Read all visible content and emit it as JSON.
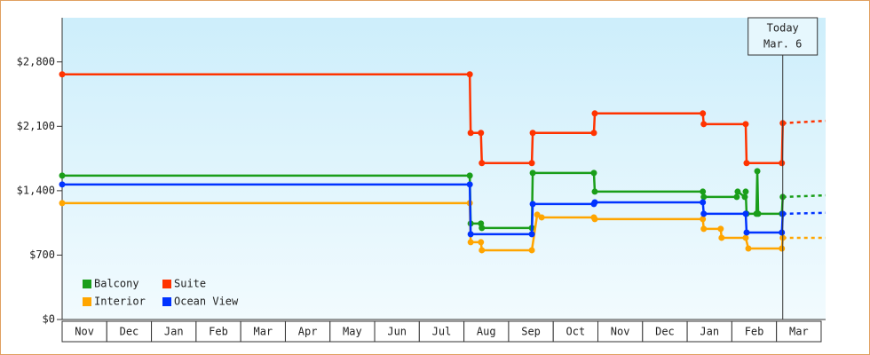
{
  "chart_data": {
    "type": "line",
    "categories": [
      "Nov",
      "Dec",
      "Jan",
      "Feb",
      "Mar",
      "Apr",
      "May",
      "Jun",
      "Jul",
      "Aug",
      "Sep",
      "Oct",
      "Nov",
      "Dec",
      "Jan",
      "Feb",
      "Mar"
    ],
    "xlim": [
      0,
      17.1
    ],
    "ylim": [
      0,
      3280
    ],
    "yticks": [
      {
        "value": 0,
        "label": "$0"
      },
      {
        "value": 700,
        "label": "$700"
      },
      {
        "value": 1400,
        "label": "$1,400"
      },
      {
        "value": 2100,
        "label": "$2,100"
      },
      {
        "value": 2800,
        "label": "$2,800"
      }
    ],
    "annotation": {
      "x": 16.14,
      "lines": [
        "Today",
        "Mar. 6"
      ]
    },
    "series": [
      {
        "name": "Balcony",
        "color": "#1a9e1a",
        "x": [
          0,
          9.13,
          9.15,
          9.38,
          9.4,
          10.52,
          10.54,
          11.91,
          11.93,
          14.35,
          14.37,
          15.11,
          15.13,
          15.29,
          15.31,
          15.33,
          15.55,
          15.57,
          15.59,
          16.12,
          16.14
        ],
        "values": [
          1564,
          1564,
          1043,
          1043,
          995,
          995,
          1593,
          1593,
          1390,
          1390,
          1332,
          1332,
          1390,
          1332,
          1390,
          1149,
          1149,
          1612,
          1149,
          1149,
          1332
        ],
        "projection": {
          "x": [
            16.14,
            17.1
          ],
          "values": [
            1332,
            1350
          ]
        }
      },
      {
        "name": "Suite",
        "color": "#ff3300",
        "x": [
          0,
          9.13,
          9.15,
          9.38,
          9.4,
          10.52,
          10.54,
          11.91,
          11.93,
          14.35,
          14.37,
          15.31,
          15.33,
          16.12,
          16.14
        ],
        "values": [
          2665,
          2665,
          2028,
          2028,
          1700,
          1700,
          2028,
          2028,
          2240,
          2240,
          2124,
          2124,
          1700,
          1700,
          2134
        ],
        "projection": {
          "x": [
            16.14,
            17.1
          ],
          "values": [
            2134,
            2160
          ]
        }
      },
      {
        "name": "Interior",
        "color": "#ffa500",
        "x": [
          0,
          9.13,
          9.15,
          9.38,
          9.4,
          10.52,
          10.64,
          10.74,
          11.91,
          11.93,
          14.35,
          14.37,
          14.75,
          14.77,
          15.31,
          15.37,
          16.12,
          16.14
        ],
        "values": [
          1265,
          1265,
          840,
          840,
          753,
          753,
          1139,
          1110,
          1110,
          1091,
          1091,
          985,
          985,
          888,
          888,
          772,
          772,
          888
        ],
        "projection": {
          "x": [
            16.14,
            17.1
          ],
          "values": [
            888,
            888
          ]
        }
      },
      {
        "name": "Ocean View",
        "color": "#0033ff",
        "x": [
          0,
          9.13,
          9.15,
          10.52,
          10.54,
          11.91,
          11.93,
          14.35,
          14.37,
          15.31,
          15.33,
          16.12,
          16.14
        ],
        "values": [
          1468,
          1468,
          927,
          927,
          1255,
          1255,
          1274,
          1274,
          1149,
          1149,
          946,
          946,
          1149
        ],
        "projection": {
          "x": [
            16.14,
            17.1
          ],
          "values": [
            1149,
            1160
          ]
        }
      }
    ]
  }
}
